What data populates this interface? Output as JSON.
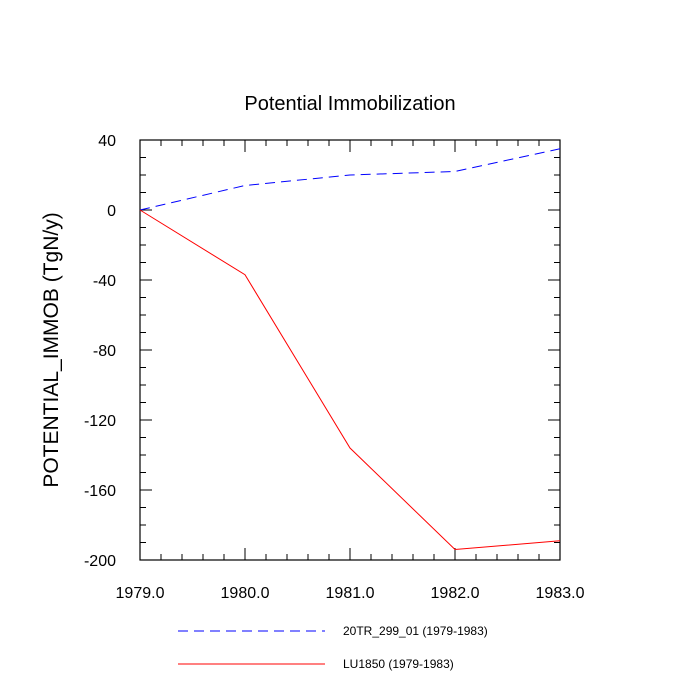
{
  "chart_data": {
    "type": "line",
    "title": "Potential Immobilization",
    "xlabel": "",
    "ylabel": "POTENTIAL_IMMOB  (TgN/y)",
    "xlim": [
      1979.0,
      1983.0
    ],
    "ylim": [
      -200,
      40
    ],
    "x": [
      1979.0,
      1980.0,
      1981.0,
      1982.0,
      1983.0
    ],
    "x_ticks": [
      1979.0,
      1980.0,
      1981.0,
      1982.0,
      1983.0
    ],
    "x_tick_labels": [
      "1979.0",
      "1980.0",
      "1981.0",
      "1982.0",
      "1983.0"
    ],
    "y_ticks": [
      40,
      0,
      -40,
      -80,
      -120,
      -160,
      -200
    ],
    "y_tick_labels": [
      "40",
      "0",
      "-40",
      "-80",
      "-120",
      "-160",
      "-200"
    ],
    "grid": false,
    "legend_position": "bottom",
    "series": [
      {
        "name": "20TR_299_01 (1979-1983)",
        "color": "#0000ff",
        "style": "dashed",
        "values": [
          0,
          14,
          20,
          22,
          35
        ]
      },
      {
        "name": "LU1850 (1979-1983)",
        "color": "#ff0000",
        "style": "solid",
        "values": [
          0,
          -37,
          -136,
          -194,
          -189
        ]
      }
    ]
  }
}
